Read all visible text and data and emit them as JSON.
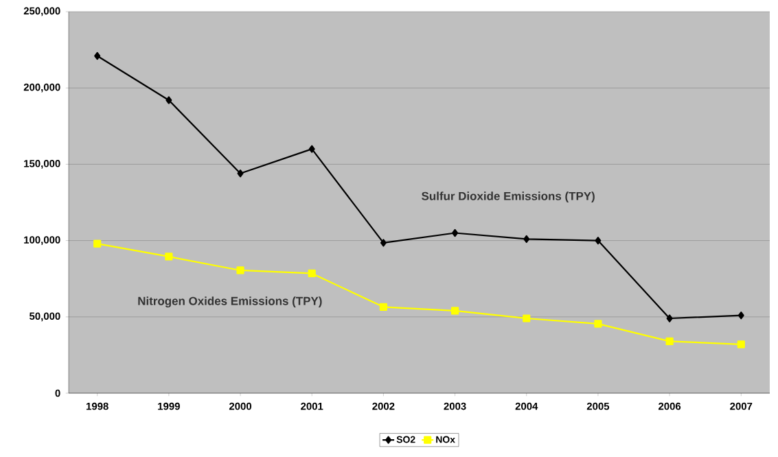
{
  "chart_data": {
    "type": "line",
    "categories": [
      "1998",
      "1999",
      "2000",
      "2001",
      "2002",
      "2003",
      "2004",
      "2005",
      "2006",
      "2007"
    ],
    "series": [
      {
        "name": "SO2",
        "color": "#000000",
        "marker": "diamond",
        "values": [
          221000,
          192000,
          144000,
          160000,
          98500,
          105000,
          101000,
          100000,
          49000,
          51000
        ]
      },
      {
        "name": "NOx",
        "color": "#ffff00",
        "marker": "square",
        "values": [
          98000,
          89500,
          80500,
          78500,
          56500,
          54000,
          49000,
          45500,
          34000,
          32000
        ]
      }
    ],
    "ylim": [
      0,
      250000
    ],
    "yticks": [
      {
        "value": 0,
        "label": "0"
      },
      {
        "value": 50000,
        "label": "50,000"
      },
      {
        "value": 100000,
        "label": "100,000"
      },
      {
        "value": 150000,
        "label": "150,000"
      },
      {
        "value": 200000,
        "label": "200,000"
      },
      {
        "value": 250000,
        "label": "250,000"
      }
    ],
    "grid": "y",
    "legend": "bottom",
    "line_style": "solid",
    "annotations": [
      "Sulfur Dioxide Emissions (TPY)",
      "Nitrogen Oxides Emissions (TPY)"
    ]
  }
}
